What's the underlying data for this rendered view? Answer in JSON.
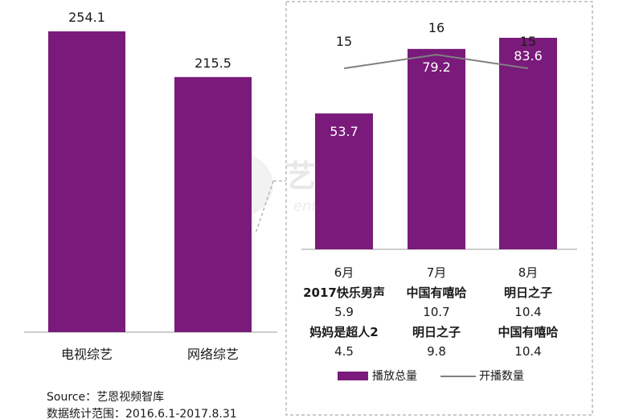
{
  "chart_data": [
    {
      "type": "bar",
      "categories": [
        "电视综艺",
        "网络综艺"
      ],
      "values": [
        254.1,
        215.5
      ],
      "color": "#7a1a7a"
    },
    {
      "type": "bar",
      "categories": [
        "6月",
        "7月",
        "8月"
      ],
      "series": [
        {
          "name": "播放总量",
          "type": "bar",
          "values": [
            53.7,
            79.2,
            83.6
          ],
          "color": "#7a1a7a"
        },
        {
          "name": "开播数量",
          "type": "line",
          "values": [
            15,
            16,
            15
          ],
          "color": "#808080"
        }
      ],
      "table": {
        "row1_show": [
          "2017快乐男声",
          "中国有嘻哈",
          "明日之子"
        ],
        "row1_value": [
          "5.9",
          "10.7",
          "10.4"
        ],
        "row2_show": [
          "妈妈是超人2",
          "明日之子",
          "中国有嘻哈"
        ],
        "row2_value": [
          "4.5",
          "9.8",
          "10.4"
        ]
      },
      "legend": [
        "播放总量",
        "开播数量"
      ],
      "legend_position": "bottom"
    }
  ],
  "watermark": {
    "text": "艺恩",
    "sub": "entgroup"
  },
  "notes": {
    "source": "Source：艺恩视频智库",
    "range": "数据统计范围：2016.6.1-2017.8.31"
  },
  "colors": {
    "bar": "#7a1a7a",
    "line": "#808080",
    "axis": "#999999",
    "box": "#999999"
  }
}
